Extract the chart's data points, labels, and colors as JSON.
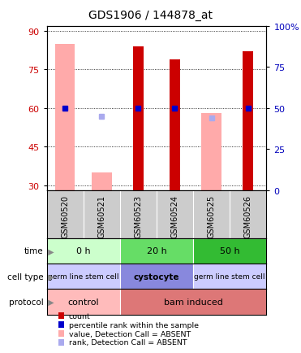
{
  "title": "GDS1906 / 144878_at",
  "samples": [
    "GSM60520",
    "GSM60521",
    "GSM60523",
    "GSM60524",
    "GSM60525",
    "GSM60526"
  ],
  "ylim_left": [
    28,
    92
  ],
  "ylim_right": [
    0,
    100
  ],
  "yticks_left": [
    30,
    45,
    60,
    75,
    90
  ],
  "yticks_right": [
    0,
    25,
    50,
    75,
    100
  ],
  "count_values": [
    null,
    null,
    84,
    79,
    null,
    82
  ],
  "rank_values": [
    50,
    null,
    50,
    50,
    null,
    50
  ],
  "absent_value_top": [
    85,
    35,
    null,
    null,
    58,
    null
  ],
  "absent_rank_values": [
    null,
    45,
    null,
    null,
    44,
    null
  ],
  "time_groups": [
    {
      "label": "0 h",
      "cols": [
        0,
        1
      ],
      "color": "#ccffcc"
    },
    {
      "label": "20 h",
      "cols": [
        2,
        3
      ],
      "color": "#66dd66"
    },
    {
      "label": "50 h",
      "cols": [
        4,
        5
      ],
      "color": "#33bb33"
    }
  ],
  "cell_type_groups": [
    {
      "label": "germ line stem cell",
      "cols": [
        0,
        1
      ],
      "color": "#ccccff"
    },
    {
      "label": "cystocyte",
      "cols": [
        2,
        3
      ],
      "color": "#8888dd"
    },
    {
      "label": "germ line stem cell",
      "cols": [
        4,
        5
      ],
      "color": "#ccccff"
    }
  ],
  "protocol_groups": [
    {
      "label": "control",
      "cols": [
        0,
        1
      ],
      "color": "#ffbbbb"
    },
    {
      "label": "bam induced",
      "cols": [
        2,
        3,
        4,
        5
      ],
      "color": "#dd7777"
    }
  ],
  "count_color": "#cc0000",
  "rank_color": "#0000cc",
  "absent_value_color": "#ffaaaa",
  "absent_rank_color": "#aaaaee",
  "left_axis_color": "#cc0000",
  "right_axis_color": "#0000bb",
  "sample_bg_color": "#cccccc",
  "legend_items": [
    {
      "color": "#cc0000",
      "label": "count"
    },
    {
      "color": "#0000cc",
      "label": "percentile rank within the sample"
    },
    {
      "color": "#ffaaaa",
      "label": "value, Detection Call = ABSENT"
    },
    {
      "color": "#aaaaee",
      "label": "rank, Detection Call = ABSENT"
    }
  ],
  "row_labels": [
    "time",
    "cell type",
    "protocol"
  ]
}
